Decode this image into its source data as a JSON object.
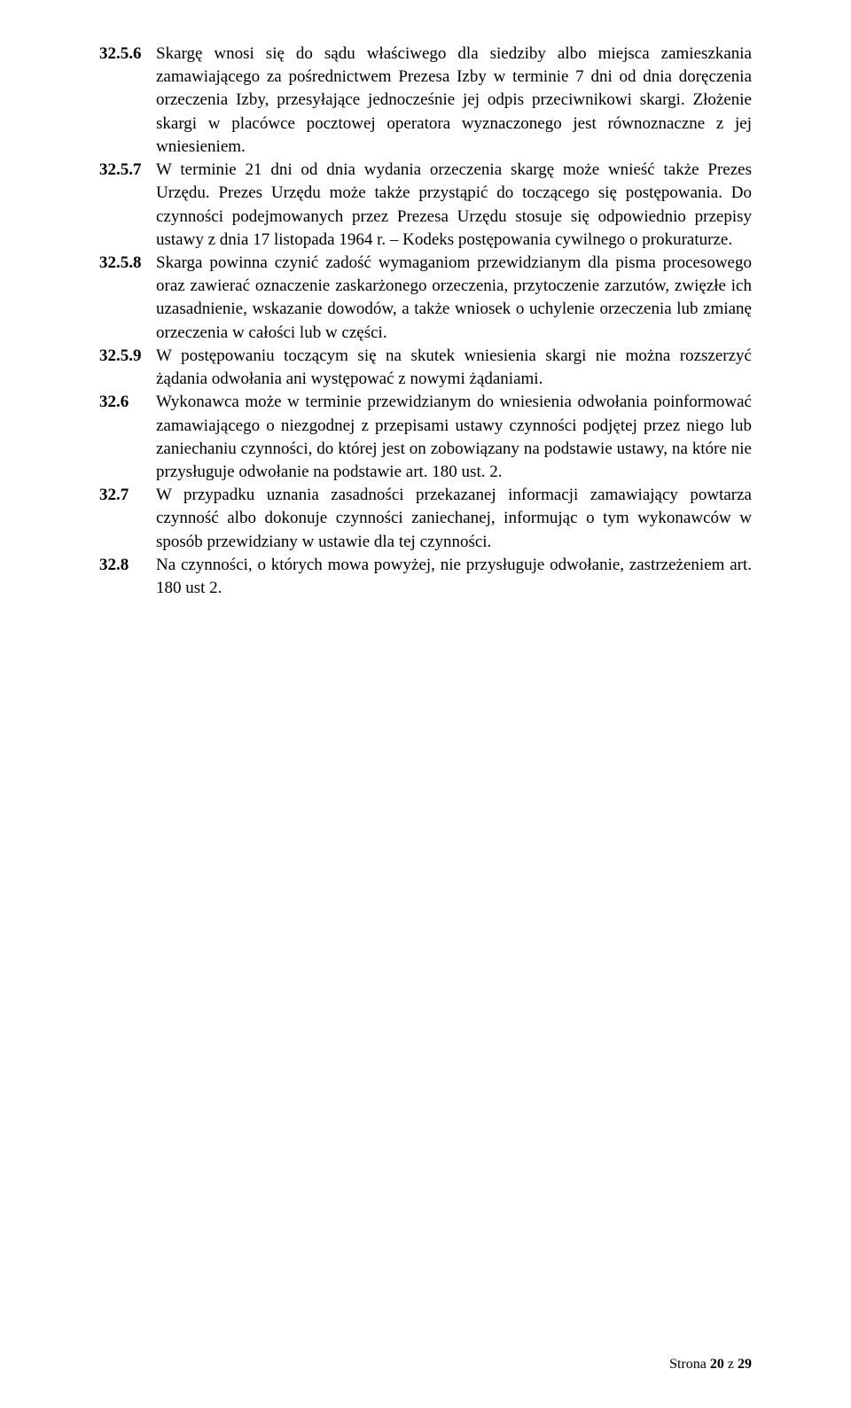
{
  "paragraphs": [
    {
      "num": "32.5.6",
      "text": "Skargę wnosi się do sądu właściwego dla siedziby albo miejsca zamieszkania zamawiającego za pośrednictwem Prezesa Izby w terminie 7 dni od dnia doręczenia orzeczenia Izby, przesyłające jednocześnie jej odpis przeciwnikowi skargi. Złożenie skargi w placówce pocztowej operatora wyznaczonego jest równoznaczne z jej wniesieniem."
    },
    {
      "num": "32.5.7",
      "text": "W terminie 21 dni od dnia wydania orzeczenia skargę może wnieść także Prezes Urzędu. Prezes Urzędu może także przystąpić do toczącego się postępowania. Do czynności podejmowanych przez Prezesa Urzędu stosuje się odpowiednio przepisy ustawy z dnia 17 listopada 1964 r. – Kodeks postępowania cywilnego o prokuraturze."
    },
    {
      "num": "32.5.8",
      "text": "Skarga powinna czynić zadość wymaganiom przewidzianym dla pisma procesowego oraz zawierać oznaczenie zaskarżonego orzeczenia, przytoczenie zarzutów, zwięzłe ich uzasadnienie, wskazanie dowodów, a także wniosek o uchylenie orzeczenia lub zmianę orzeczenia w całości lub w części."
    },
    {
      "num": "32.5.9",
      "text": "W postępowaniu toczącym się na skutek wniesienia skargi nie można rozszerzyć żądania odwołania ani występować z nowymi żądaniami."
    },
    {
      "num": "32.6",
      "text": "Wykonawca może w terminie przewidzianym do wniesienia odwołania poinformować zamawiającego o niezgodnej z przepisami ustawy czynności podjętej przez niego lub zaniechaniu czynności, do której jest on zobowiązany na podstawie ustawy, na które nie przysługuje odwołanie na podstawie art. 180 ust. 2."
    },
    {
      "num": "32.7",
      "text": "W przypadku uznania zasadności przekazanej informacji zamawiający powtarza czynność albo dokonuje czynności zaniechanej, informując o tym wykonawców w sposób przewidziany w ustawie dla tej czynności."
    },
    {
      "num": "32.8",
      "text": "Na czynności, o których mowa powyżej, nie przysługuje odwołanie, zastrzeżeniem art. 180 ust 2."
    }
  ],
  "footer": {
    "prefix": "Strona ",
    "page": "20",
    "middle": " z ",
    "total": "29"
  }
}
